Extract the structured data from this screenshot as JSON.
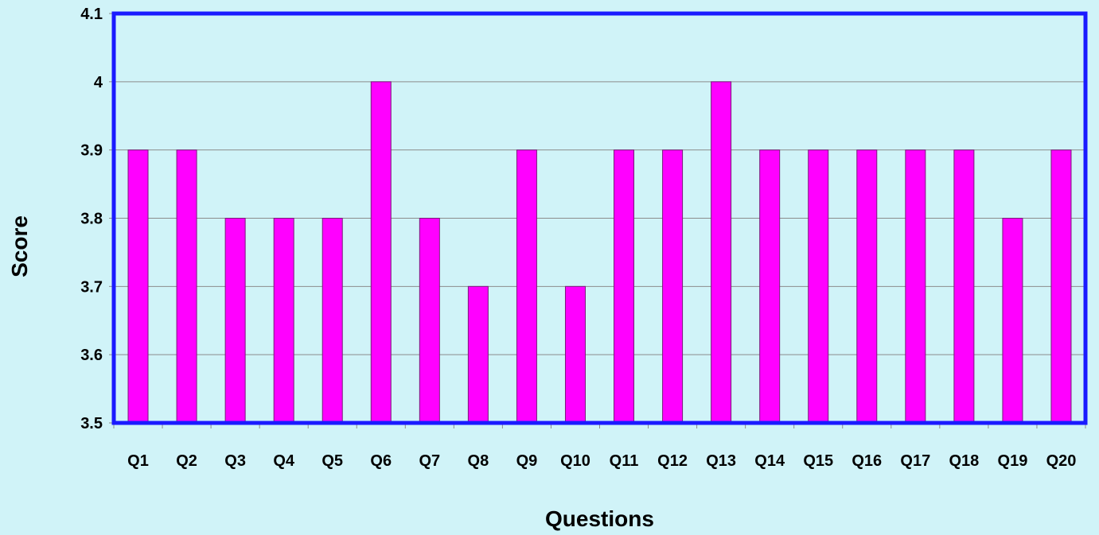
{
  "chart_data": {
    "type": "bar",
    "title": "",
    "xlabel": "Questions",
    "ylabel": "Score",
    "categories": [
      "Q1",
      "Q2",
      "Q3",
      "Q4",
      "Q5",
      "Q6",
      "Q7",
      "Q8",
      "Q9",
      "Q10",
      "Q11",
      "Q12",
      "Q13",
      "Q14",
      "Q15",
      "Q16",
      "Q17",
      "Q18",
      "Q19",
      "Q20"
    ],
    "values": [
      3.9,
      3.9,
      3.8,
      3.8,
      3.8,
      4.0,
      3.8,
      3.7,
      3.9,
      3.7,
      3.9,
      3.9,
      4.0,
      3.9,
      3.9,
      3.9,
      3.9,
      3.9,
      3.8,
      3.9
    ],
    "ylim": [
      3.5,
      4.1
    ],
    "yticks": [
      "3.5",
      "3.6",
      "3.7",
      "3.8",
      "3.9",
      "4",
      "4.1"
    ],
    "grid": true,
    "colors": {
      "background": "#d0f3f8",
      "plot_background": "#d0f3f8",
      "bar_fill": "#ff00ff",
      "bar_stroke": "#7a1a7a",
      "plot_border": "#1a1aff",
      "gridline": "#8c8c8c",
      "axis_line": "#8c8c8c"
    }
  }
}
